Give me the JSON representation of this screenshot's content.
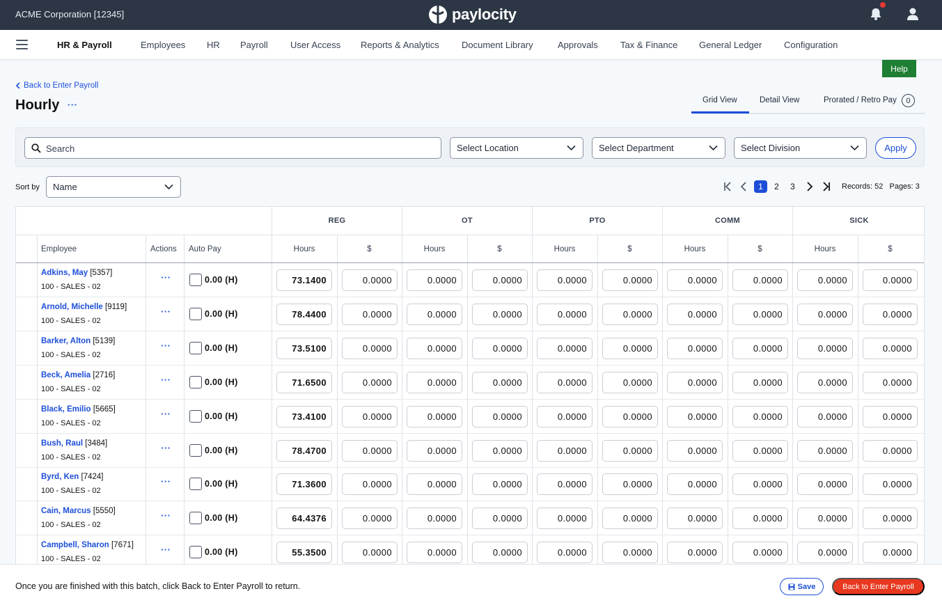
{
  "topbar": {
    "company": "ACME Corporation [12345]",
    "logo_text": "paylocity"
  },
  "nav": {
    "brand": "HR & Payroll",
    "items": [
      "Employees",
      "HR",
      "Payroll",
      "User Access",
      "Reports & Analytics",
      "Document Library",
      "Approvals",
      "Tax & Finance",
      "General Ledger",
      "Configuration"
    ]
  },
  "help_label": "Help",
  "back_link": "Back to Enter Payroll",
  "page_title": "Hourly",
  "title_more": "···",
  "tabs": {
    "grid": "Grid View",
    "detail": "Detail View",
    "prorated": "Prorated / Retro Pay",
    "prorated_count": "0"
  },
  "filters": {
    "search_placeholder": "Search",
    "location": "Select Location",
    "department": "Select Department",
    "division": "Select Division",
    "apply": "Apply"
  },
  "sort": {
    "label": "Sort by",
    "value": "Name"
  },
  "pagination": {
    "pages": [
      "1",
      "2",
      "3"
    ],
    "active": "1",
    "records": "Records: 52",
    "page_count": "Pages: 3"
  },
  "table": {
    "groups": [
      "REG",
      "OT",
      "PTO",
      "COMM",
      "SICK"
    ],
    "columns": {
      "employee": "Employee",
      "actions": "Actions",
      "auto_pay": "Auto Pay",
      "hours": "Hours",
      "dollars": "$"
    },
    "rows": [
      {
        "name": "Adkins, May",
        "id": "[5357]",
        "dept": "100 - SALES - 02",
        "actions": "···",
        "auto_pay": "0.00 (H)",
        "values": [
          "73.1400",
          "0.0000",
          "0.0000",
          "0.0000",
          "0.0000",
          "0.0000",
          "0.0000",
          "0.0000",
          "0.0000",
          "0.0000"
        ]
      },
      {
        "name": "Arnold, Michelle",
        "id": "[9119]",
        "dept": "100 - SALES - 02",
        "actions": "···",
        "auto_pay": "0.00 (H)",
        "values": [
          "78.4400",
          "0.0000",
          "0.0000",
          "0.0000",
          "0.0000",
          "0.0000",
          "0.0000",
          "0.0000",
          "0.0000",
          "0.0000"
        ]
      },
      {
        "name": "Barker, Alton",
        "id": "[5139]",
        "dept": "100 - SALES - 02",
        "actions": "···",
        "auto_pay": "0.00 (H)",
        "values": [
          "73.5100",
          "0.0000",
          "0.0000",
          "0.0000",
          "0.0000",
          "0.0000",
          "0.0000",
          "0.0000",
          "0.0000",
          "0.0000"
        ]
      },
      {
        "name": "Beck, Amelia",
        "id": "[2716]",
        "dept": "100 - SALES - 02",
        "actions": "···",
        "auto_pay": "0.00 (H)",
        "values": [
          "71.6500",
          "0.0000",
          "0.0000",
          "0.0000",
          "0.0000",
          "0.0000",
          "0.0000",
          "0.0000",
          "0.0000",
          "0.0000"
        ]
      },
      {
        "name": "Black, Emilio",
        "id": "[5665]",
        "dept": "100 - SALES - 02",
        "actions": "···",
        "auto_pay": "0.00 (H)",
        "values": [
          "73.4100",
          "0.0000",
          "0.0000",
          "0.0000",
          "0.0000",
          "0.0000",
          "0.0000",
          "0.0000",
          "0.0000",
          "0.0000"
        ]
      },
      {
        "name": "Bush, Raul",
        "id": "[3484]",
        "dept": "100 - SALES - 02",
        "actions": "···",
        "auto_pay": "0.00 (H)",
        "values": [
          "78.4700",
          "0.0000",
          "0.0000",
          "0.0000",
          "0.0000",
          "0.0000",
          "0.0000",
          "0.0000",
          "0.0000",
          "0.0000"
        ]
      },
      {
        "name": "Byrd, Ken",
        "id": "[7424]",
        "dept": "100 - SALES - 02",
        "actions": "···",
        "auto_pay": "0.00 (H)",
        "values": [
          "71.3600",
          "0.0000",
          "0.0000",
          "0.0000",
          "0.0000",
          "0.0000",
          "0.0000",
          "0.0000",
          "0.0000",
          "0.0000"
        ]
      },
      {
        "name": "Cain, Marcus",
        "id": "[5550]",
        "dept": "100 - SALES - 02",
        "actions": "···",
        "auto_pay": "0.00 (H)",
        "values": [
          "64.4376",
          "0.0000",
          "0.0000",
          "0.0000",
          "0.0000",
          "0.0000",
          "0.0000",
          "0.0000",
          "0.0000",
          "0.0000"
        ]
      },
      {
        "name": "Campbell, Sharon",
        "id": "[7671]",
        "dept": "100 - SALES - 02",
        "actions": "···",
        "auto_pay": "0.00 (H)",
        "values": [
          "55.3500",
          "0.0000",
          "0.0000",
          "0.0000",
          "0.0000",
          "0.0000",
          "0.0000",
          "0.0000",
          "0.0000",
          "0.0000"
        ]
      }
    ]
  },
  "footer": {
    "message": "Once you are finished with this batch, click Back to Enter Payroll to return.",
    "save": "Save",
    "back": "Back to Enter Payroll"
  },
  "colors": {
    "topbar": "#2c3644",
    "accent": "#1d4ed8",
    "help": "#1e7e34",
    "danger": "#e8381f"
  }
}
